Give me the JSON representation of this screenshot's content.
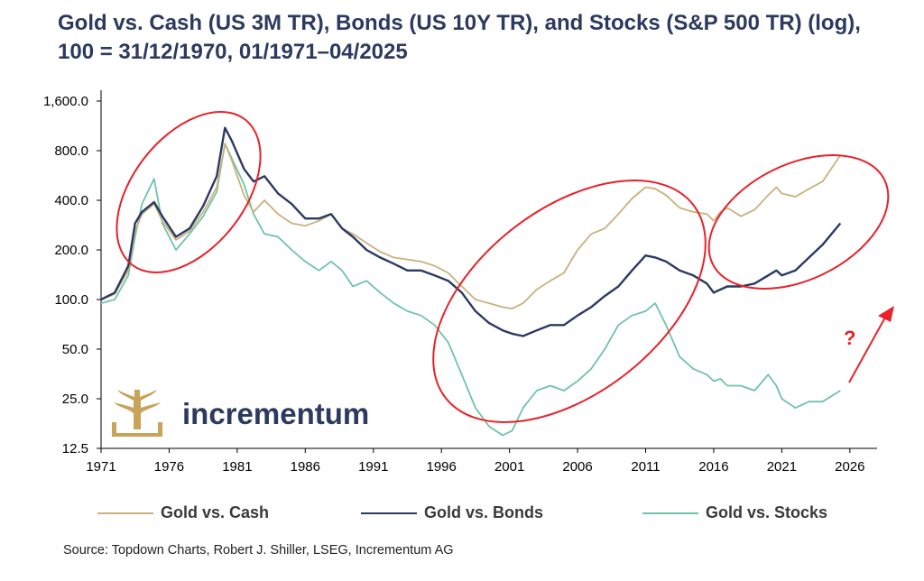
{
  "title": "Gold vs. Cash (US 3M TR), Bonds (US 10Y TR), and Stocks (S&P 500 TR) (log), 100 = 31/12/1970, 01/1971–04/2025",
  "source": "Source: Topdown Charts, Robert J. Shiller, LSEG, Incrementum AG",
  "logo": {
    "text": "incrementum",
    "icon": "tree-logo-icon"
  },
  "annotation": {
    "question_mark": "?"
  },
  "colors": {
    "cash": "#c8b27e",
    "bonds": "#2b3a63",
    "stocks": "#6fc4a6",
    "annotation": "#e8212a",
    "title": "#2b3a5e"
  },
  "chart_data": {
    "type": "line",
    "title": "Gold vs. Cash (US 3M TR), Bonds (US 10Y TR), and Stocks (S&P 500 TR) (log), 100 = 31/12/1970, 01/1971–04/2025",
    "xlabel": "",
    "ylabel": "",
    "y_scale": "log",
    "ylim": [
      12.5,
      1600
    ],
    "xlim": [
      1971,
      2028
    ],
    "y_ticks": [
      12.5,
      25,
      50,
      100,
      200,
      400,
      800,
      1600
    ],
    "y_tick_labels": [
      "12.5",
      "25.0",
      "50.0",
      "100.0",
      "200.0",
      "400.0",
      "800.0",
      "1,600.0"
    ],
    "x_ticks": [
      1971,
      1976,
      1981,
      1986,
      1991,
      1996,
      2001,
      2006,
      2011,
      2016,
      2021,
      2026
    ],
    "x_tick_labels": [
      "1971",
      "1976",
      "1981",
      "1986",
      "1991",
      "1996",
      "2001",
      "2006",
      "2011",
      "2016",
      "2021",
      "2026"
    ],
    "grid": false,
    "legend_position": "bottom",
    "series": [
      {
        "name": "Gold vs. Cash",
        "color": "#c8b27e",
        "x": [
          1971,
          1972,
          1973,
          1973.5,
          1974,
          1974.9,
          1975.5,
          1976.5,
          1977.5,
          1978.5,
          1979.5,
          1980.1,
          1980.6,
          1981.5,
          1982.2,
          1983,
          1984,
          1985,
          1986,
          1987,
          1987.9,
          1988.7,
          1989.5,
          1990.5,
          1991.5,
          1992.5,
          1993.5,
          1994.5,
          1995.5,
          1996.5,
          1997.5,
          1998.5,
          1999.5,
          2000.5,
          2001.2,
          2002,
          2003,
          2004,
          2005,
          2006,
          2007,
          2008,
          2009,
          2010,
          2011,
          2011.7,
          2012.5,
          2013.5,
          2014.5,
          2015.5,
          2016,
          2016.5,
          2017,
          2018,
          2019,
          2020,
          2020.6,
          2021,
          2022,
          2023,
          2024,
          2025.3
        ],
        "values": [
          100,
          108,
          150,
          260,
          330,
          380,
          300,
          230,
          260,
          340,
          480,
          880,
          700,
          430,
          340,
          400,
          330,
          290,
          280,
          300,
          330,
          270,
          250,
          220,
          195,
          180,
          175,
          170,
          160,
          145,
          120,
          100,
          95,
          90,
          88,
          95,
          115,
          130,
          145,
          200,
          250,
          270,
          330,
          410,
          480,
          470,
          430,
          360,
          340,
          330,
          300,
          340,
          360,
          320,
          350,
          430,
          480,
          440,
          420,
          470,
          520,
          750
        ]
      },
      {
        "name": "Gold vs. Bonds",
        "color": "#2b3a63",
        "x": [
          1971,
          1972,
          1973,
          1973.5,
          1974,
          1974.9,
          1975.5,
          1976.5,
          1977.5,
          1978.5,
          1979.5,
          1980.1,
          1980.6,
          1981.5,
          1982.2,
          1983,
          1984,
          1985,
          1986,
          1987,
          1987.9,
          1988.7,
          1989.5,
          1990.5,
          1991.5,
          1992.5,
          1993.5,
          1994.5,
          1995.5,
          1996.5,
          1997.5,
          1998.5,
          1999.5,
          2000.5,
          2001.2,
          2002,
          2003,
          2004,
          2005,
          2006,
          2007,
          2008,
          2009,
          2010,
          2011,
          2011.7,
          2012.5,
          2013.5,
          2014.5,
          2015.5,
          2016,
          2016.5,
          2017,
          2018,
          2019,
          2020,
          2020.6,
          2021,
          2022,
          2023,
          2024,
          2025.3
        ],
        "values": [
          100,
          110,
          160,
          290,
          340,
          390,
          320,
          240,
          270,
          370,
          560,
          1100,
          920,
          620,
          520,
          560,
          440,
          380,
          310,
          310,
          330,
          270,
          240,
          200,
          180,
          165,
          150,
          150,
          140,
          130,
          110,
          85,
          72,
          65,
          62,
          60,
          65,
          70,
          70,
          80,
          90,
          105,
          120,
          150,
          185,
          180,
          170,
          150,
          140,
          125,
          110,
          115,
          120,
          120,
          125,
          140,
          150,
          140,
          150,
          180,
          215,
          290
        ]
      },
      {
        "name": "Gold vs. Stocks",
        "color": "#6fc4a6",
        "x": [
          1971,
          1972,
          1973,
          1973.5,
          1974,
          1974.9,
          1975.5,
          1976.5,
          1977.5,
          1978.5,
          1979.5,
          1980.1,
          1980.6,
          1981.5,
          1982.2,
          1983,
          1984,
          1985,
          1986,
          1987,
          1987.9,
          1988.7,
          1989.5,
          1990.5,
          1991.5,
          1992.5,
          1993.5,
          1994.5,
          1995.5,
          1996.5,
          1997.5,
          1998.5,
          1999.5,
          2000.5,
          2001.2,
          2002,
          2003,
          2004,
          2005,
          2006,
          2007,
          2008,
          2009,
          2010,
          2011,
          2011.7,
          2012.5,
          2013.5,
          2014.5,
          2015.5,
          2016,
          2016.5,
          2017,
          2018,
          2019,
          2020,
          2020.6,
          2021,
          2022,
          2023,
          2024,
          2025.3
        ],
        "values": [
          95,
          100,
          140,
          240,
          380,
          540,
          290,
          200,
          250,
          320,
          450,
          880,
          720,
          500,
          330,
          250,
          240,
          200,
          170,
          150,
          170,
          150,
          120,
          130,
          110,
          95,
          85,
          80,
          70,
          55,
          35,
          22,
          17,
          15,
          16,
          22,
          28,
          30,
          28,
          32,
          38,
          50,
          70,
          80,
          85,
          95,
          70,
          45,
          38,
          35,
          32,
          33,
          30,
          30,
          28,
          35,
          30,
          25,
          22,
          24,
          24,
          28
        ]
      }
    ]
  }
}
